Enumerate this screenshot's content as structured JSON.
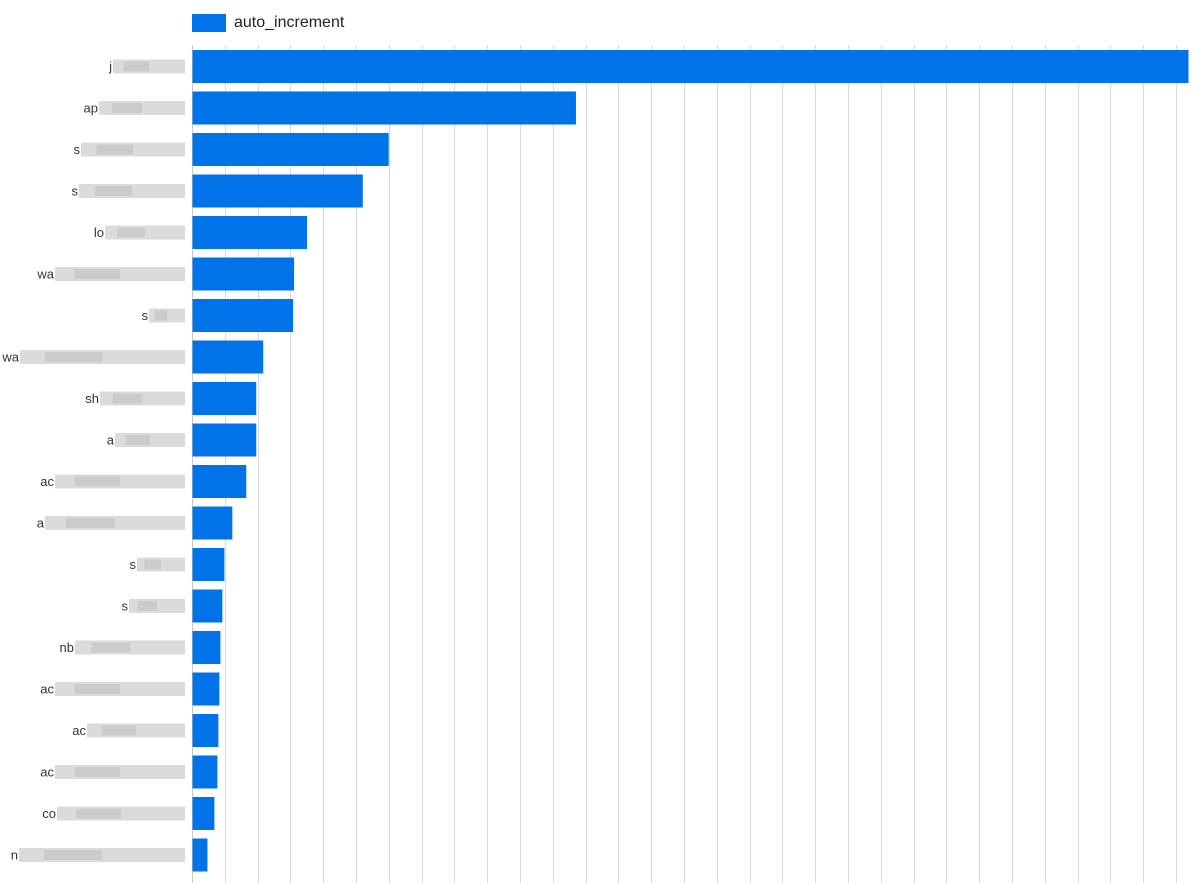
{
  "chart_data": {
    "type": "bar",
    "orientation": "horizontal",
    "categories": [
      "j",
      "ap",
      "s",
      "s",
      "lo",
      "wa",
      "s",
      "wa",
      "sh",
      "a",
      "ac",
      "a",
      "s",
      "s",
      "nb",
      "ac",
      "ac",
      "ac",
      "co",
      "n"
    ],
    "series": [
      {
        "name": "auto_increment",
        "values": [
          100,
          38.5,
          19.7,
          17.1,
          11.5,
          10.2,
          10.1,
          7.1,
          6.4,
          6.4,
          5.4,
          4.0,
          3.2,
          3.0,
          2.8,
          2.7,
          2.6,
          2.5,
          2.2,
          1.5
        ]
      }
    ],
    "xlim": [
      0,
      100
    ],
    "grid": true,
    "legend_position": "top-left",
    "colors": {
      "bar": "#0073E8",
      "grid": "#d9d9d9",
      "axis": "#c8c8c8",
      "redaction": "#cfcfcf"
    }
  }
}
